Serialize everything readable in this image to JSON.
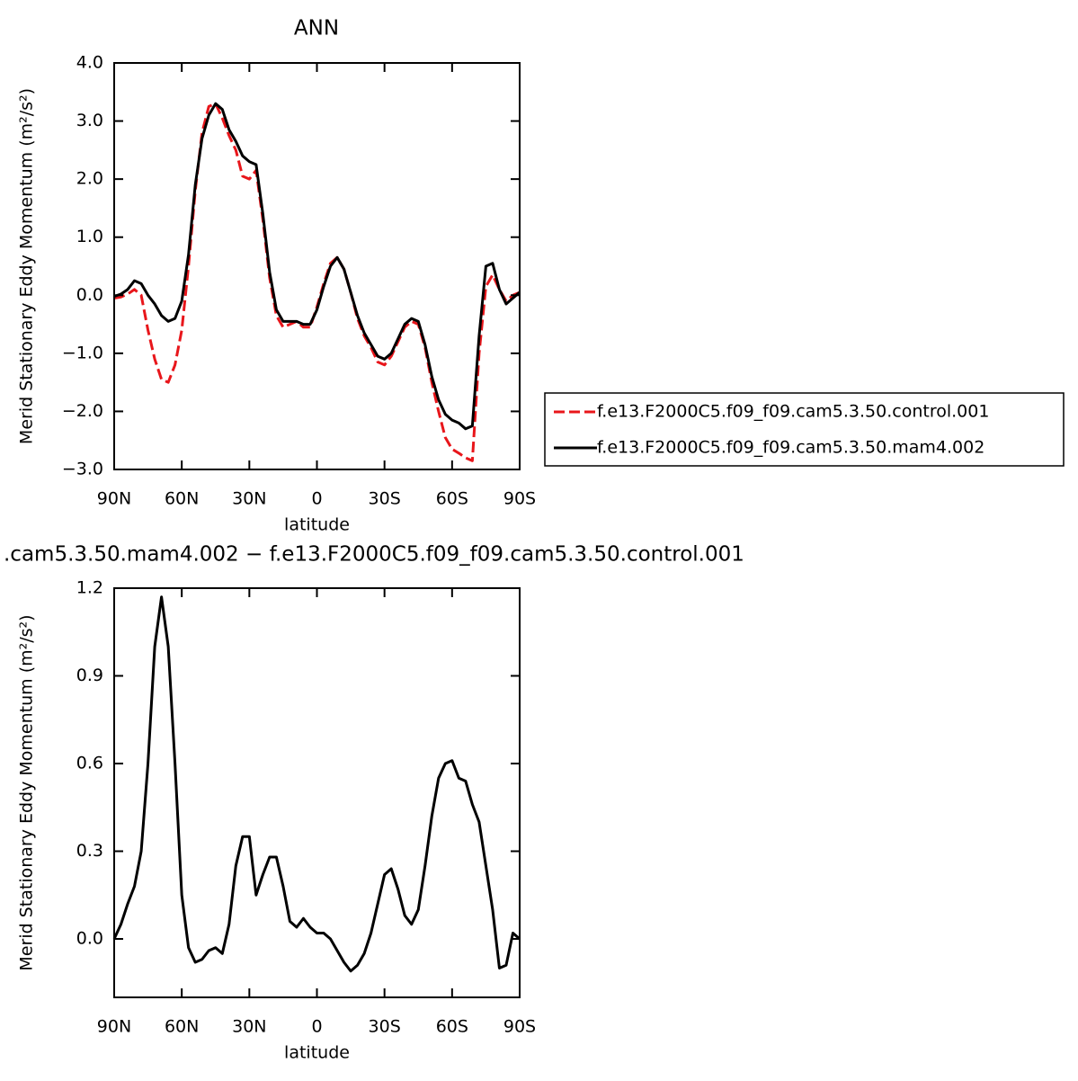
{
  "chart_data": [
    {
      "type": "line",
      "title": "ANN",
      "xlabel": "latitude",
      "ylabel": "Merid Stationary Eddy Momentum (m²/s²)",
      "xlim": [
        90,
        -90
      ],
      "xticks": [
        {
          "value": 90,
          "label": "90N"
        },
        {
          "value": 60,
          "label": "60N"
        },
        {
          "value": 30,
          "label": "30N"
        },
        0,
        {
          "value": -30,
          "label": "30S"
        },
        {
          "value": -60,
          "label": "60S"
        },
        {
          "value": -90,
          "label": "90S"
        }
      ],
      "ylim": [
        -3,
        4
      ],
      "yticks": [
        {
          "value": -3,
          "label": "−3.0"
        },
        {
          "value": -2,
          "label": "−2.0"
        },
        {
          "value": -1,
          "label": "−1.0"
        },
        {
          "value": 0,
          "label": "0.0"
        },
        {
          "value": 1,
          "label": "1.0"
        },
        {
          "value": 2,
          "label": "2.0"
        },
        {
          "value": 3,
          "label": "3.0"
        },
        {
          "value": 4,
          "label": "4.0"
        }
      ],
      "legend": true,
      "x": [
        90,
        87,
        84,
        81,
        78,
        75,
        72,
        69,
        66,
        63,
        60,
        57,
        54,
        51,
        48,
        45,
        42,
        39,
        36,
        33,
        30,
        27,
        24,
        21,
        18,
        15,
        12,
        9,
        6,
        3,
        0,
        -3,
        -6,
        -9,
        -12,
        -15,
        -18,
        -21,
        -24,
        -27,
        -30,
        -33,
        -36,
        -39,
        -42,
        -45,
        -48,
        -51,
        -54,
        -57,
        -60,
        -63,
        -66,
        -69,
        -72,
        -75,
        -78,
        -81,
        -84,
        -87,
        -90
      ],
      "series": [
        {
          "name": "f.e13.F2000C5.f09_f09.cam5.3.50.control.001",
          "color": "#e8161b",
          "line_style": "dashed",
          "values": [
            -0.05,
            -0.03,
            0.02,
            0.1,
            0.0,
            -0.6,
            -1.1,
            -1.45,
            -1.5,
            -1.2,
            -0.6,
            0.5,
            1.8,
            2.8,
            3.25,
            3.3,
            3.05,
            2.75,
            2.5,
            2.05,
            2.0,
            2.15,
            1.3,
            0.3,
            -0.35,
            -0.55,
            -0.5,
            -0.45,
            -0.55,
            -0.55,
            -0.2,
            0.2,
            0.55,
            0.65,
            0.45,
            0.05,
            -0.4,
            -0.7,
            -0.9,
            -1.15,
            -1.2,
            -1.05,
            -0.8,
            -0.55,
            -0.45,
            -0.5,
            -0.9,
            -1.5,
            -2.0,
            -2.45,
            -2.65,
            -2.72,
            -2.8,
            -2.85,
            -1.0,
            0.15,
            0.35,
            0.1,
            -0.1,
            0.0,
            0.05
          ]
        },
        {
          "name": "f.e13.F2000C5.f09_f09.cam5.3.50.mam4.002",
          "color": "#000000",
          "line_style": "solid",
          "values": [
            -0.02,
            0.02,
            0.1,
            0.25,
            0.2,
            0.0,
            -0.15,
            -0.35,
            -0.45,
            -0.4,
            -0.1,
            0.7,
            1.9,
            2.7,
            3.1,
            3.3,
            3.2,
            2.85,
            2.65,
            2.4,
            2.3,
            2.25,
            1.4,
            0.4,
            -0.25,
            -0.45,
            -0.45,
            -0.45,
            -0.5,
            -0.5,
            -0.25,
            0.15,
            0.5,
            0.65,
            0.45,
            0.05,
            -0.35,
            -0.65,
            -0.85,
            -1.05,
            -1.1,
            -1.0,
            -0.75,
            -0.5,
            -0.4,
            -0.45,
            -0.85,
            -1.4,
            -1.8,
            -2.05,
            -2.15,
            -2.2,
            -2.3,
            -2.25,
            -0.7,
            0.5,
            0.55,
            0.1,
            -0.15,
            -0.05,
            0.05
          ]
        }
      ]
    },
    {
      "type": "line",
      "title": ".cam5.3.50.mam4.002 − f.e13.F2000C5.f09_f09.cam5.3.50.control.001",
      "xlabel": "latitude",
      "ylabel": "Merid Stationary Eddy Momentum (m²/s²)",
      "xlim": [
        90,
        -90
      ],
      "xticks": [
        {
          "value": 90,
          "label": "90N"
        },
        {
          "value": 60,
          "label": "60N"
        },
        {
          "value": 30,
          "label": "30N"
        },
        0,
        {
          "value": -30,
          "label": "30S"
        },
        {
          "value": -60,
          "label": "60S"
        },
        {
          "value": -90,
          "label": "90S"
        }
      ],
      "ylim": [
        -0.2,
        1.2
      ],
      "yticks": [
        {
          "value": 0,
          "label": "0.0"
        },
        0.3,
        0.6,
        0.9,
        1.2
      ],
      "legend": false,
      "x": [
        90,
        87,
        84,
        81,
        78,
        75,
        72,
        69,
        66,
        63,
        60,
        57,
        54,
        51,
        48,
        45,
        42,
        39,
        36,
        33,
        30,
        27,
        24,
        21,
        18,
        15,
        12,
        9,
        6,
        3,
        0,
        -3,
        -6,
        -9,
        -12,
        -15,
        -18,
        -21,
        -24,
        -27,
        -30,
        -33,
        -36,
        -39,
        -42,
        -45,
        -48,
        -51,
        -54,
        -57,
        -60,
        -63,
        -66,
        -69,
        -72,
        -75,
        -78,
        -81,
        -84,
        -87,
        -90
      ],
      "series": [
        {
          "color": "#000000",
          "line_style": "solid",
          "values": [
            0.0,
            0.05,
            0.12,
            0.18,
            0.3,
            0.6,
            1.0,
            1.17,
            1.0,
            0.6,
            0.15,
            -0.03,
            -0.08,
            -0.07,
            -0.04,
            -0.03,
            -0.05,
            0.05,
            0.25,
            0.35,
            0.35,
            0.15,
            0.22,
            0.28,
            0.28,
            0.18,
            0.06,
            0.04,
            0.07,
            0.04,
            0.02,
            0.02,
            0.0,
            -0.04,
            -0.08,
            -0.11,
            -0.09,
            -0.05,
            0.02,
            0.12,
            0.22,
            0.24,
            0.17,
            0.08,
            0.05,
            0.1,
            0.25,
            0.42,
            0.55,
            0.6,
            0.61,
            0.55,
            0.54,
            0.46,
            0.4,
            0.25,
            0.1,
            -0.1,
            -0.09,
            0.02,
            0.0
          ]
        }
      ]
    }
  ]
}
